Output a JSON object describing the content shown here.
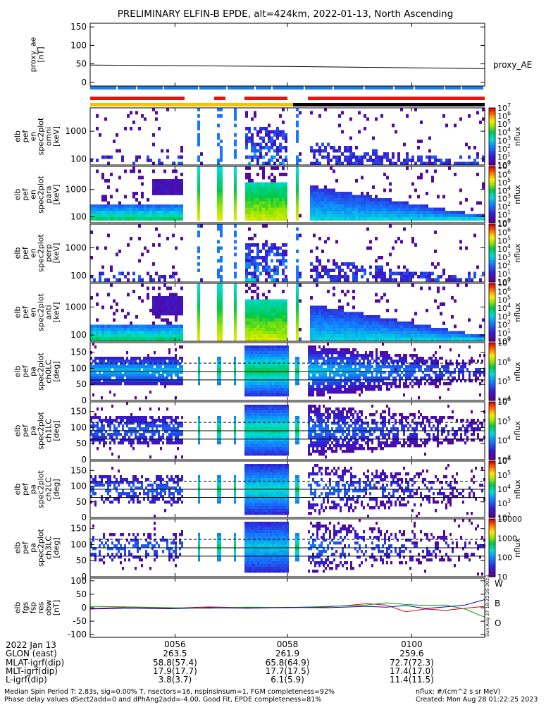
{
  "title": "PRELIMINARY ELFIN-B EPDE, alt=424km, 2022-01-13, North Ascending",
  "chart_data": [
    {
      "type": "line",
      "panel": "proxy_ae",
      "ylabel_lines": [
        "proxy_ae",
        "[nT]"
      ],
      "yticks": [
        "150",
        "100",
        "50",
        "0"
      ],
      "ylim": [
        -10,
        160
      ],
      "series": [
        {
          "name": "proxy_AE",
          "x": [
            0.0,
            0.25,
            0.5,
            0.75,
            1.0
          ],
          "values": [
            47,
            45,
            43,
            40,
            37
          ]
        }
      ]
    },
    {
      "type": "heatmap",
      "panel": "spec-pef-en-1",
      "ylabel_lines": [
        "elb",
        "pef",
        "en",
        "spec2plot",
        "omni",
        "[keV]"
      ],
      "yticks": [
        "1000",
        "100"
      ],
      "ylog": true,
      "ylim": [
        60,
        7000
      ],
      "colorbar": {
        "label": "nflux",
        "ticks": [
          "10^7",
          "10^6",
          "10^5",
          "10^4",
          "10^3",
          "10^2",
          "10^1",
          "10^0"
        ],
        "range": [
          1,
          10000000
        ]
      }
    },
    {
      "type": "heatmap",
      "panel": "spec-pef-en-2",
      "ylabel_lines": [
        "elb",
        "pef",
        "en",
        "spec2plot",
        "para",
        "[keV]"
      ],
      "yticks": [
        "1000",
        "100"
      ],
      "ylog": true,
      "ylim": [
        60,
        7000
      ],
      "colorbar": {
        "label": "nflux",
        "ticks": [
          "10^7",
          "10^6",
          "10^5",
          "10^4",
          "10^3",
          "10^2",
          "10^1",
          "10^0"
        ],
        "range": [
          1,
          10000000
        ]
      }
    },
    {
      "type": "heatmap",
      "panel": "spec-pef-en-3",
      "ylabel_lines": [
        "elb",
        "pef",
        "en",
        "spec2plot",
        "perp",
        "[keV]"
      ],
      "yticks": [
        "1000",
        "100"
      ],
      "ylog": true,
      "ylim": [
        60,
        7000
      ],
      "colorbar": {
        "label": "nflux",
        "ticks": [
          "10^7",
          "10^6",
          "10^5",
          "10^4",
          "10^3",
          "10^2",
          "10^1",
          "10^0"
        ],
        "range": [
          1,
          10000000
        ]
      }
    },
    {
      "type": "heatmap",
      "panel": "spec-pef-en-4",
      "ylabel_lines": [
        "elb",
        "pef",
        "en",
        "spec2plot",
        "anti",
        "[keV]"
      ],
      "yticks": [
        "1000",
        "100"
      ],
      "ylog": true,
      "ylim": [
        60,
        7000
      ],
      "colorbar": {
        "label": "nflux",
        "ticks": [
          "10^7",
          "10^6",
          "10^5",
          "10^4",
          "10^3",
          "10^2",
          "10^1",
          "10^0"
        ],
        "range": [
          1,
          10000000
        ]
      }
    },
    {
      "type": "heatmap",
      "panel": "pa-ch0LC",
      "ylabel_lines": [
        "elb",
        "pef",
        "pa",
        "spec2plot",
        "ch0LC",
        "[deg]"
      ],
      "yticks": [
        "150",
        "100",
        "50",
        "0"
      ],
      "ylim": [
        0,
        180
      ],
      "ref_lines": {
        "solid": [
          64,
          90
        ],
        "dashed": [
          116
        ]
      },
      "colorbar": {
        "label": "nflux",
        "ticks": [
          "10^7",
          "10^6",
          "10^5",
          "10^4"
        ],
        "range": [
          1000,
          10000000
        ]
      }
    },
    {
      "type": "heatmap",
      "panel": "pa-ch1LC",
      "ylabel_lines": [
        "elb",
        "pef",
        "pa",
        "spec2plot",
        "ch1LC",
        "[deg]"
      ],
      "yticks": [
        "150",
        "100",
        "50",
        "0"
      ],
      "ylim": [
        0,
        180
      ],
      "ref_lines": {
        "solid": [
          64,
          90
        ],
        "dashed": [
          116
        ]
      },
      "colorbar": {
        "label": "nflux",
        "ticks": [
          "10^6",
          "10^5",
          "10^4",
          "10^3"
        ],
        "range": [
          1000,
          1000000
        ]
      }
    },
    {
      "type": "heatmap",
      "panel": "pa-ch2LC",
      "ylabel_lines": [
        "elb",
        "pef",
        "pa",
        "spec2plot",
        "ch2LC",
        "[deg]"
      ],
      "yticks": [
        "150",
        "100",
        "50",
        "0"
      ],
      "ylim": [
        0,
        180
      ],
      "ref_lines": {
        "solid": [
          64,
          90
        ],
        "dashed": [
          116
        ]
      },
      "colorbar": {
        "label": "nflux",
        "ticks": [
          "10^6",
          "10^5",
          "10^4",
          "10^3",
          "10^2"
        ],
        "range": [
          100,
          1000000
        ]
      }
    },
    {
      "type": "heatmap",
      "panel": "pa-ch3LC",
      "ylabel_lines": [
        "elb",
        "pef",
        "pa",
        "spec2plot",
        "ch3LC",
        "[deg]"
      ],
      "yticks": [
        "150",
        "100",
        "50",
        "0"
      ],
      "ylim": [
        0,
        180
      ],
      "ref_lines": {
        "solid": [
          64,
          90
        ],
        "dashed": [
          116
        ]
      },
      "colorbar": {
        "label": "nflux",
        "ticks": [
          "10000",
          "1000",
          "100",
          "10"
        ],
        "range": [
          10,
          10000
        ]
      }
    },
    {
      "type": "line",
      "panel": "fgs-res",
      "ylabel_lines": [
        "elb",
        "fgs",
        "fsp",
        "res",
        "obw",
        "[nT]"
      ],
      "yticks": [
        "100",
        "50",
        "0",
        "-50",
        "-100"
      ],
      "ylim": [
        -110,
        110
      ],
      "series": [
        {
          "name": "W",
          "color": "#e00000",
          "x": [
            0,
            0.1,
            0.2,
            0.3,
            0.4,
            0.5,
            0.6,
            0.65,
            0.7,
            0.75,
            0.8,
            0.85,
            0.9,
            0.95,
            1.0
          ],
          "values": [
            -3,
            2,
            -2,
            3,
            0,
            1,
            3,
            8,
            15,
            10,
            -15,
            -5,
            -10,
            -2,
            5
          ]
        },
        {
          "name": "B",
          "color": "#00a000",
          "x": [
            0,
            0.1,
            0.2,
            0.3,
            0.4,
            0.5,
            0.6,
            0.7,
            0.75,
            0.8,
            0.85,
            0.9,
            0.95,
            1.0
          ],
          "values": [
            5,
            3,
            0,
            -2,
            2,
            0,
            5,
            10,
            18,
            12,
            8,
            10,
            -5,
            -35
          ]
        },
        {
          "name": "O",
          "color": "#0000d0",
          "x": [
            0,
            0.1,
            0.2,
            0.3,
            0.4,
            0.5,
            0.6,
            0.7,
            0.75,
            0.8,
            0.85,
            0.9,
            0.95,
            1.0
          ],
          "values": [
            -5,
            -2,
            -4,
            0,
            -2,
            1,
            0,
            5,
            2,
            8,
            -3,
            3,
            10,
            30
          ]
        }
      ]
    }
  ],
  "time_ticks": [
    "0056",
    "0058",
    "0100"
  ],
  "orbit_rows": [
    {
      "label": "2022 Jan 13",
      "values": [
        "",
        "",
        ""
      ]
    },
    {
      "label": "GLON (east)",
      "values": [
        "263.5",
        "261.9",
        "259.6"
      ]
    },
    {
      "label": "MLAT-igrf(dip)",
      "values": [
        "58.8(57.4)",
        "65.8(64.9)",
        "72.7(72.3)"
      ]
    },
    {
      "label": "MLT-igrf(dip)",
      "values": [
        "17.9(17.7)",
        "17.7(17.5)",
        "17.4(17.0)"
      ]
    },
    {
      "label": "L-igrf(dip)",
      "values": [
        "3.8(3.7)",
        "6.1(5.9)",
        "11.4(11.5)"
      ]
    }
  ],
  "footer": {
    "line1": "Median Spin Period T: 2.83s, sig=0.00% T, nsectors=16, nspinsinsum=1, FGM completeness=92%",
    "line2": "Phase delay values dSect2add=0 and dPhAng2add=-4.00, Good Fit, EPDE completeness=81%",
    "units": "nflux: #/(cm^2 s sr MeV)",
    "created": "Created: Mon Aug 28 01:22:25 2023"
  },
  "vertical_stamp": "Sun Aug 27 18:22:25 2023",
  "colors": {
    "red_bar": "#e8140f",
    "blue_bar": "#1a7ee0",
    "yellow_bar": "#f5c400",
    "black_bar": "#000000"
  }
}
